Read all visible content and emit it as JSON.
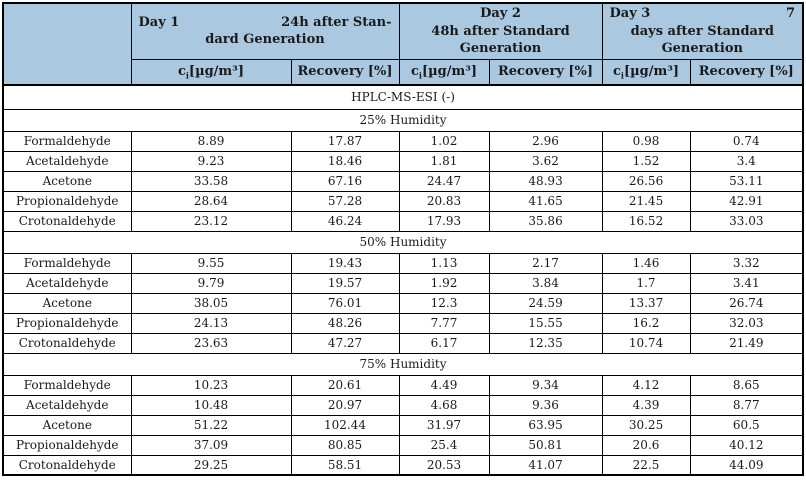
{
  "colors": {
    "header_bg": "#aac9e0",
    "border": "#000000",
    "text": "#1a1a1a"
  },
  "header": {
    "day_groups": [
      {
        "line1_left": "Day 1",
        "line1_right": "24h after Stan-",
        "line2": "dard Generation"
      },
      {
        "line1_left": "Day 2",
        "line1_right": "",
        "line2": "48h after Standard Generation"
      },
      {
        "line1_left": "Day 3",
        "line1_right": "7",
        "line2": "days after Standard Generation"
      }
    ],
    "sub_columns": {
      "concentration_prefix": "c",
      "concentration_sub": "i",
      "concentration_unit": "[µg/m³]",
      "recovery_label": "Recovery [%]"
    }
  },
  "method_row": "HPLC-MS-ESI (-)",
  "sections": [
    {
      "label": "25% Humidity",
      "rows": [
        {
          "substance": "Formaldehyde",
          "values": [
            "8.89",
            "17.87",
            "1.02",
            "2.96",
            "0.98",
            "0.74"
          ]
        },
        {
          "substance": "Acetaldehyde",
          "values": [
            "9.23",
            "18.46",
            "1.81",
            "3.62",
            "1.52",
            "3.4"
          ]
        },
        {
          "substance": "Acetone",
          "values": [
            "33.58",
            "67.16",
            "24.47",
            "48.93",
            "26.56",
            "53.11"
          ]
        },
        {
          "substance": "Propionaldehyde",
          "values": [
            "28.64",
            "57.28",
            "20.83",
            "41.65",
            "21.45",
            "42.91"
          ]
        },
        {
          "substance": "Crotonaldehyde",
          "values": [
            "23.12",
            "46.24",
            "17.93",
            "35.86",
            "16.52",
            "33.03"
          ]
        }
      ]
    },
    {
      "label": "50% Humidity",
      "rows": [
        {
          "substance": "Formaldehyde",
          "values": [
            "9.55",
            "19.43",
            "1.13",
            "2.17",
            "1.46",
            "3.32"
          ]
        },
        {
          "substance": "Acetaldehyde",
          "values": [
            "9.79",
            "19.57",
            "1.92",
            "3.84",
            "1.7",
            "3.41"
          ]
        },
        {
          "substance": "Acetone",
          "values": [
            "38.05",
            "76.01",
            "12.3",
            "24.59",
            "13.37",
            "26.74"
          ]
        },
        {
          "substance": "Propionaldehyde",
          "values": [
            "24.13",
            "48.26",
            "7.77",
            "15.55",
            "16.2",
            "32.03"
          ]
        },
        {
          "substance": "Crotonaldehyde",
          "values": [
            "23.63",
            "47.27",
            "6.17",
            "12.35",
            "10.74",
            "21.49"
          ]
        }
      ]
    },
    {
      "label": "75% Humidity",
      "rows": [
        {
          "substance": "Formaldehyde",
          "values": [
            "10.23",
            "20.61",
            "4.49",
            "9.34",
            "4.12",
            "8.65"
          ]
        },
        {
          "substance": "Acetaldehyde",
          "values": [
            "10.48",
            "20.97",
            "4.68",
            "9.36",
            "4.39",
            "8.77"
          ]
        },
        {
          "substance": "Acetone",
          "values": [
            "51.22",
            "102.44",
            "31.97",
            "63.95",
            "30.25",
            "60.5"
          ]
        },
        {
          "substance": "Propionaldehyde",
          "values": [
            "37.09",
            "80.85",
            "25.4",
            "50.81",
            "20.6",
            "40.12"
          ]
        },
        {
          "substance": "Crotonaldehyde",
          "values": [
            "29.25",
            "58.51",
            "20.53",
            "41.07",
            "22.5",
            "44.09"
          ]
        }
      ]
    }
  ]
}
